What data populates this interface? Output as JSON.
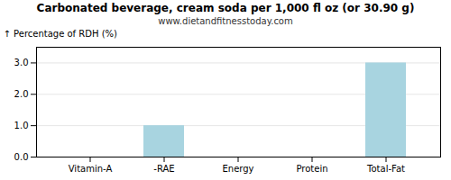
{
  "chart_data": {
    "type": "bar",
    "title": "Carbonated beverage, cream soda per 1,000 fl oz (or 30.90 g)",
    "subtitle": "www.dietandfitnesstoday.com",
    "categories": [
      "Vitamin-A",
      "-RAE",
      "Energy",
      "Protein",
      "Total-Fat"
    ],
    "values": [
      0.0,
      1.0,
      0.0,
      0.0,
      3.0
    ],
    "color": "#a8d4e0",
    "ylabel": "Percentage of RDH (%)",
    "ylim": [
      0,
      3.5
    ],
    "yticks": [
      {
        "value": 0,
        "label": "0.0"
      },
      {
        "value": 1,
        "label": "1.0"
      },
      {
        "value": 2,
        "label": "2.0"
      },
      {
        "value": 3,
        "label": "3.0"
      }
    ],
    "grid": true
  }
}
